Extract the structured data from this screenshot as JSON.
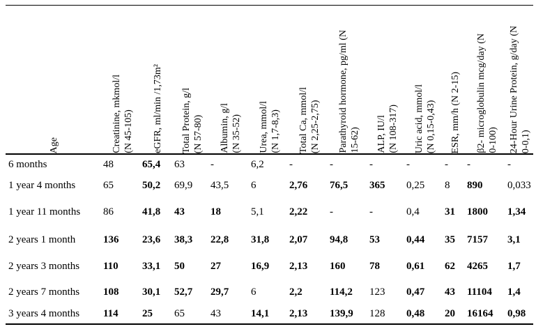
{
  "table": {
    "columns": [
      {
        "id": "age",
        "label_lines": [
          "Age"
        ]
      },
      {
        "id": "creatinine",
        "label_lines": [
          "Creatinine, mkmol/l",
          "(N 45-105)"
        ]
      },
      {
        "id": "egfr",
        "label_lines": [
          "eGFR, ml/min /1,73m²"
        ]
      },
      {
        "id": "total-protein",
        "label_lines": [
          "Total Protein, g/l",
          "(N 57-80)"
        ]
      },
      {
        "id": "albumin",
        "label_lines": [
          "Albumin, g/l",
          "(N 35-52)"
        ]
      },
      {
        "id": "urea",
        "label_lines": [
          "Urea, mmol/l",
          "(N 1,7-8,3)"
        ]
      },
      {
        "id": "total-ca",
        "label_lines": [
          "Total Ca, mmol/l",
          "(N 2,25-2,75)"
        ]
      },
      {
        "id": "parathyroid-hormone",
        "label_lines": [
          "Parathyroid hormone, pg/ml (N",
          "15-62)"
        ]
      },
      {
        "id": "alp",
        "label_lines": [
          "ALP, IU/l",
          "(N 108-317)"
        ]
      },
      {
        "id": "uric-acid",
        "label_lines": [
          "Uric acid, mmol/l",
          "(N 0,15-0,43)"
        ]
      },
      {
        "id": "esr",
        "label_lines": [
          "ESR, mm/h (N 2-15)"
        ]
      },
      {
        "id": "b2-microglobulin",
        "label_lines": [
          "β2- microglobulin mcg/day (N",
          "0-100)"
        ]
      },
      {
        "id": "urine-protein",
        "label_lines": [
          "24-Hour Urine Protein, g/day (N",
          "0-0,1)"
        ]
      }
    ],
    "rows": [
      {
        "age": "6 months",
        "values": [
          "48",
          "65,4",
          "63",
          "-",
          "6,2",
          "-",
          "-",
          "-",
          "-",
          "-",
          "-",
          "-"
        ],
        "bold": [
          0,
          1,
          0,
          0,
          0,
          0,
          0,
          0,
          0,
          0,
          0,
          0
        ]
      },
      {
        "age": "1 year 4 months",
        "values": [
          "65",
          "50,2",
          "69,9",
          "43,5",
          "6",
          "2,76",
          "76,5",
          "365",
          "0,25",
          "8",
          "890",
          "0,033"
        ],
        "bold": [
          0,
          1,
          0,
          0,
          0,
          1,
          1,
          1,
          0,
          0,
          1,
          0
        ]
      },
      {
        "age": "1 year 11 months",
        "values": [
          "86",
          "41,8",
          "43",
          "18",
          "5,1",
          "2,22",
          "-",
          "-",
          "0,4",
          "31",
          "1800",
          "1,34"
        ],
        "bold": [
          0,
          1,
          1,
          1,
          0,
          1,
          0,
          0,
          0,
          1,
          1,
          1
        ]
      },
      {
        "age": "2 years 1 month",
        "values": [
          "136",
          "23,6",
          "38,3",
          "22,8",
          "31,8",
          "2,07",
          "94,8",
          "53",
          "0,44",
          "35",
          "7157",
          "3,1"
        ],
        "bold": [
          1,
          1,
          1,
          1,
          1,
          1,
          1,
          1,
          1,
          1,
          1,
          1
        ]
      },
      {
        "age": "2 years 3 months",
        "values": [
          "110",
          "33,1",
          "50",
          "27",
          "16,9",
          "2,13",
          "160",
          "78",
          "0,61",
          "62",
          "4265",
          "1,7"
        ],
        "bold": [
          1,
          1,
          1,
          1,
          1,
          1,
          1,
          1,
          1,
          1,
          1,
          1
        ]
      },
      {
        "age": "2 years 7 months",
        "values": [
          "108",
          "30,1",
          "52,7",
          "29,7",
          "6",
          "2,2",
          "114,2",
          "123",
          "0,47",
          "43",
          "11104",
          "1,4"
        ],
        "bold": [
          1,
          1,
          1,
          1,
          0,
          1,
          1,
          0,
          1,
          1,
          1,
          1
        ]
      },
      {
        "age": "3 years 4 months",
        "values": [
          "114",
          "25",
          "65",
          "43",
          "14,1",
          "2,13",
          "139,9",
          "128",
          "0,48",
          "20",
          "16164",
          "0,98"
        ],
        "bold": [
          1,
          1,
          0,
          0,
          1,
          1,
          1,
          0,
          1,
          1,
          1,
          1
        ]
      }
    ]
  }
}
